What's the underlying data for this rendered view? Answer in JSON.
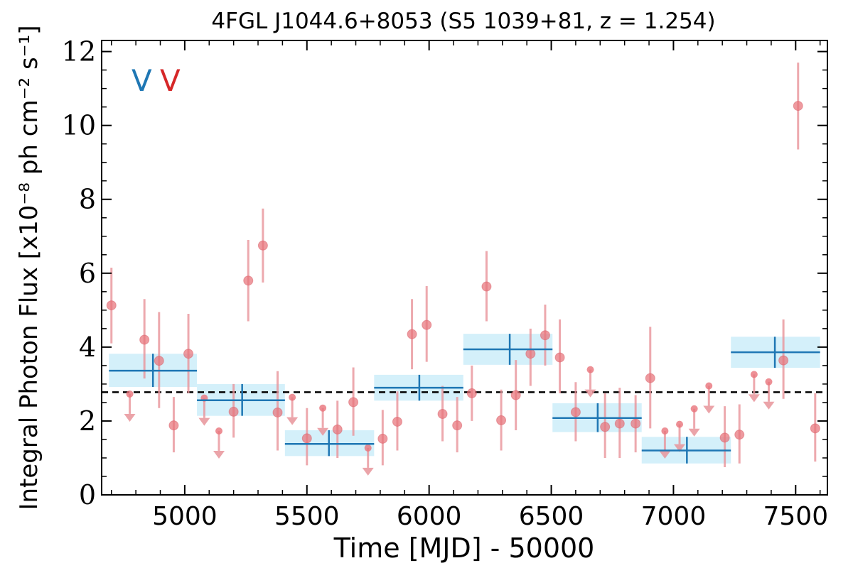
{
  "chart_data": {
    "type": "scatter",
    "title": "4FGL J1044.6+8053 (S5 1039+81, z = 1.254)",
    "xlabel": "Time [MJD] - 50000",
    "ylabel": "Integral Photon Flux [x10⁻⁸ ph cm⁻² s⁻¹]",
    "xlim": [
      4660,
      7630
    ],
    "ylim": [
      0,
      12.3
    ],
    "xticks": [
      5000,
      5500,
      6000,
      6500,
      7000,
      7500
    ],
    "yticks": [
      0,
      2,
      4,
      6,
      8,
      10,
      12
    ],
    "xtick_labels": [
      "5000",
      "5500",
      "6000",
      "6500",
      "7000",
      "7500"
    ],
    "ytick_labels": [
      "0",
      "2",
      "4",
      "6",
      "8",
      "10",
      "12"
    ],
    "mean_flux": 2.78,
    "annotations": [
      {
        "text": "V",
        "color": "#1f77b4"
      },
      {
        "text": "V",
        "color": "#d62728"
      }
    ],
    "colors": {
      "points": "#e8737a",
      "error_bars": "#e8949a",
      "bins": "#1f77b4",
      "bin_band": "#cfeefa",
      "mean_line": "#000000"
    },
    "series": [
      {
        "type": "points",
        "points": [
          {
            "x": 4700,
            "y": 5.13,
            "lo": 4.1,
            "hi": 6.15
          },
          {
            "x": 4835,
            "y": 4.2,
            "lo": 3.15,
            "hi": 5.3
          },
          {
            "x": 4895,
            "y": 3.63,
            "lo": 2.35,
            "hi": 4.95
          },
          {
            "x": 4955,
            "y": 1.88,
            "lo": 1.15,
            "hi": 2.65
          },
          {
            "x": 5015,
            "y": 3.82,
            "lo": 2.75,
            "hi": 4.9
          },
          {
            "x": 5200,
            "y": 2.25,
            "lo": 1.55,
            "hi": 3.0
          },
          {
            "x": 5260,
            "y": 5.8,
            "lo": 4.7,
            "hi": 6.9
          },
          {
            "x": 5320,
            "y": 6.75,
            "lo": 5.75,
            "hi": 7.75
          },
          {
            "x": 5380,
            "y": 2.23,
            "lo": 1.2,
            "hi": 3.35
          },
          {
            "x": 5500,
            "y": 1.53,
            "lo": 0.8,
            "hi": 2.35
          },
          {
            "x": 5625,
            "y": 1.77,
            "lo": 1.0,
            "hi": 2.55
          },
          {
            "x": 5690,
            "y": 2.51,
            "lo": 1.6,
            "hi": 3.45
          },
          {
            "x": 5810,
            "y": 1.52,
            "lo": 0.8,
            "hi": 2.3
          },
          {
            "x": 5870,
            "y": 1.98,
            "lo": 1.2,
            "hi": 2.8
          },
          {
            "x": 5930,
            "y": 4.35,
            "lo": 3.4,
            "hi": 5.3
          },
          {
            "x": 5990,
            "y": 4.6,
            "lo": 3.6,
            "hi": 5.65
          },
          {
            "x": 6055,
            "y": 2.19,
            "lo": 1.45,
            "hi": 2.95
          },
          {
            "x": 6115,
            "y": 1.88,
            "lo": 1.15,
            "hi": 2.65
          },
          {
            "x": 6175,
            "y": 2.75,
            "lo": 2.0,
            "hi": 3.5
          },
          {
            "x": 6235,
            "y": 5.64,
            "lo": 4.7,
            "hi": 6.6
          },
          {
            "x": 6295,
            "y": 2.02,
            "lo": 1.2,
            "hi": 2.85
          },
          {
            "x": 6355,
            "y": 2.7,
            "lo": 1.75,
            "hi": 3.65
          },
          {
            "x": 6415,
            "y": 3.82,
            "lo": 2.95,
            "hi": 4.5
          },
          {
            "x": 6475,
            "y": 4.32,
            "lo": 3.5,
            "hi": 5.15
          },
          {
            "x": 6535,
            "y": 3.72,
            "lo": 2.75,
            "hi": 4.75
          },
          {
            "x": 6600,
            "y": 2.24,
            "lo": 1.45,
            "hi": 3.05
          },
          {
            "x": 6720,
            "y": 1.84,
            "lo": 1.0,
            "hi": 2.75
          },
          {
            "x": 6780,
            "y": 1.93,
            "lo": 1.0,
            "hi": 2.9
          },
          {
            "x": 6845,
            "y": 1.93,
            "lo": 1.15,
            "hi": 2.7
          },
          {
            "x": 6905,
            "y": 3.16,
            "lo": 1.8,
            "hi": 4.55
          },
          {
            "x": 7210,
            "y": 1.55,
            "lo": 0.75,
            "hi": 2.4
          },
          {
            "x": 7270,
            "y": 1.63,
            "lo": 0.85,
            "hi": 2.45
          },
          {
            "x": 7450,
            "y": 3.64,
            "lo": 2.6,
            "hi": 4.75
          },
          {
            "x": 7510,
            "y": 10.53,
            "lo": 9.35,
            "hi": 11.7
          },
          {
            "x": 7580,
            "y": 1.8,
            "lo": 0.9,
            "hi": 2.75
          }
        ]
      },
      {
        "type": "upper_limits",
        "points": [
          {
            "x": 4775,
            "y": 2.73
          },
          {
            "x": 5080,
            "y": 2.62
          },
          {
            "x": 5140,
            "y": 1.73
          },
          {
            "x": 5440,
            "y": 2.64
          },
          {
            "x": 5565,
            "y": 2.35
          },
          {
            "x": 5750,
            "y": 1.27
          },
          {
            "x": 6660,
            "y": 3.39
          },
          {
            "x": 6965,
            "y": 1.73
          },
          {
            "x": 7025,
            "y": 1.91
          },
          {
            "x": 7085,
            "y": 2.33
          },
          {
            "x": 7145,
            "y": 2.95
          },
          {
            "x": 7330,
            "y": 3.26
          },
          {
            "x": 7390,
            "y": 3.06
          }
        ]
      },
      {
        "type": "bins",
        "bins": [
          {
            "x0": 4690,
            "x1": 5050,
            "xc": 4870,
            "y": 3.36,
            "ylo": 2.92,
            "yhi": 3.82
          },
          {
            "x0": 5050,
            "x1": 5410,
            "xc": 5235,
            "y": 2.56,
            "ylo": 2.14,
            "yhi": 3.0
          },
          {
            "x0": 5410,
            "x1": 5775,
            "xc": 5590,
            "y": 1.38,
            "ylo": 1.05,
            "yhi": 1.75
          },
          {
            "x0": 5775,
            "x1": 6140,
            "xc": 5960,
            "y": 2.9,
            "ylo": 2.55,
            "yhi": 3.25
          },
          {
            "x0": 6140,
            "x1": 6505,
            "xc": 6330,
            "y": 3.94,
            "ylo": 3.52,
            "yhi": 4.36
          },
          {
            "x0": 6505,
            "x1": 6870,
            "xc": 6690,
            "y": 2.08,
            "ylo": 1.7,
            "yhi": 2.48
          },
          {
            "x0": 6870,
            "x1": 7235,
            "xc": 7055,
            "y": 1.2,
            "ylo": 0.85,
            "yhi": 1.57
          },
          {
            "x0": 7235,
            "x1": 7600,
            "xc": 7415,
            "y": 3.86,
            "ylo": 3.44,
            "yhi": 4.28
          }
        ]
      }
    ]
  }
}
